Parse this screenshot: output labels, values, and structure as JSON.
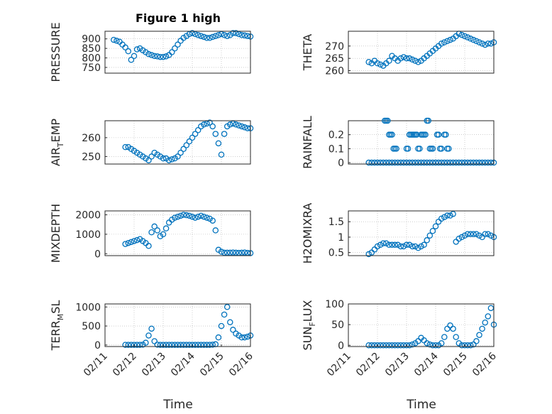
{
  "figure": {
    "title": "Figure 1 high",
    "xlabel": "Time",
    "date_ticks": [
      "02/11",
      "02/12",
      "02/13",
      "02/14",
      "02/15",
      "02/16"
    ]
  },
  "colors": {
    "marker": "#0072BD",
    "axis": "#262626",
    "grid": "#b0b0b0"
  },
  "chart_data": [
    {
      "id": "pressure",
      "type": "scatter",
      "ylabel_main": "PRESSURE",
      "ylabel_sub": "",
      "ylabel_tail": "",
      "xlim": [
        0,
        5
      ],
      "ylim": [
        720,
        940
      ],
      "yticks": [
        750,
        800,
        850,
        900
      ],
      "ytick_labels": [
        "750",
        "800",
        "850",
        "900"
      ],
      "x": [
        0.3,
        0.4,
        0.5,
        0.6,
        0.7,
        0.8,
        0.9,
        1.0,
        1.1,
        1.2,
        1.3,
        1.4,
        1.5,
        1.6,
        1.7,
        1.8,
        1.9,
        2.0,
        2.1,
        2.2,
        2.3,
        2.4,
        2.5,
        2.6,
        2.7,
        2.8,
        2.9,
        3.0,
        3.1,
        3.2,
        3.3,
        3.4,
        3.5,
        3.6,
        3.7,
        3.8,
        3.9,
        4.0,
        4.1,
        4.2,
        4.3,
        4.4,
        4.5,
        4.6,
        4.7,
        4.8,
        4.9,
        5.0
      ],
      "y": [
        895,
        890,
        885,
        870,
        855,
        835,
        790,
        810,
        845,
        850,
        840,
        830,
        820,
        815,
        810,
        808,
        805,
        805,
        808,
        815,
        830,
        850,
        870,
        890,
        905,
        915,
        925,
        930,
        925,
        920,
        915,
        910,
        905,
        905,
        910,
        915,
        920,
        925,
        920,
        915,
        920,
        930,
        930,
        925,
        920,
        918,
        915,
        912
      ]
    },
    {
      "id": "theta",
      "type": "scatter",
      "ylabel_main": "THETA",
      "ylabel_sub": "",
      "ylabel_tail": "",
      "xlim": [
        0,
        5
      ],
      "ylim": [
        259,
        276
      ],
      "yticks": [
        260,
        265,
        270
      ],
      "ytick_labels": [
        "260",
        "265",
        "270"
      ],
      "x": [
        0.7,
        0.8,
        0.9,
        1.0,
        1.1,
        1.2,
        1.3,
        1.4,
        1.5,
        1.6,
        1.7,
        1.8,
        1.9,
        2.0,
        2.1,
        2.2,
        2.3,
        2.4,
        2.5,
        2.6,
        2.7,
        2.8,
        2.9,
        3.0,
        3.1,
        3.2,
        3.3,
        3.4,
        3.5,
        3.6,
        3.7,
        3.8,
        3.9,
        4.0,
        4.1,
        4.2,
        4.3,
        4.4,
        4.5,
        4.6,
        4.7,
        4.8,
        4.9,
        5.0
      ],
      "y": [
        263.5,
        263,
        264,
        263,
        262.5,
        262,
        263,
        264,
        266,
        265,
        264,
        265,
        265.5,
        265,
        265,
        264.5,
        264,
        263.5,
        264,
        265,
        266,
        267,
        268,
        269,
        270,
        271,
        271.5,
        272,
        272.5,
        273,
        274,
        275,
        274.5,
        274,
        273.5,
        273,
        272.5,
        272,
        271.5,
        271,
        270.5,
        271,
        271,
        271.5
      ]
    },
    {
      "id": "air_temp",
      "type": "scatter",
      "ylabel_main": "AIR",
      "ylabel_sub": "T",
      "ylabel_tail": "EMP",
      "xlim": [
        0,
        5
      ],
      "ylim": [
        246,
        269
      ],
      "yticks": [
        250,
        260
      ],
      "ytick_labels": [
        "250",
        "260"
      ],
      "x": [
        0.7,
        0.8,
        0.9,
        1.0,
        1.1,
        1.2,
        1.3,
        1.4,
        1.5,
        1.6,
        1.7,
        1.8,
        1.9,
        2.0,
        2.1,
        2.2,
        2.3,
        2.4,
        2.5,
        2.6,
        2.7,
        2.8,
        2.9,
        3.0,
        3.1,
        3.2,
        3.3,
        3.4,
        3.5,
        3.6,
        3.7,
        3.8,
        3.9,
        4.0,
        4.1,
        4.2,
        4.3,
        4.4,
        4.5,
        4.6,
        4.7,
        4.8,
        4.9,
        5.0
      ],
      "y": [
        255,
        255,
        254,
        253,
        252,
        251,
        250,
        249,
        248,
        250,
        252,
        251,
        250,
        249,
        249,
        248,
        248.5,
        249,
        250,
        252,
        254,
        256,
        258,
        260,
        262,
        264,
        266,
        267,
        267.5,
        268,
        266,
        262,
        257,
        251,
        262,
        266,
        267,
        267.5,
        267,
        266.5,
        266,
        265.5,
        265,
        265
      ]
    },
    {
      "id": "rainfall",
      "type": "scatter",
      "ylabel_main": "RAINFALL",
      "ylabel_sub": "",
      "ylabel_tail": "",
      "xlim": [
        0,
        5
      ],
      "ylim": [
        -0.01,
        0.3
      ],
      "yticks": [
        0,
        0.1,
        0.2
      ],
      "ytick_labels": [
        "0",
        "0.1",
        "0.2"
      ],
      "x": [
        0.7,
        0.8,
        0.9,
        1.0,
        1.1,
        1.2,
        1.3,
        1.4,
        1.5,
        1.6,
        1.7,
        1.8,
        1.9,
        2.0,
        2.1,
        2.2,
        2.3,
        2.4,
        2.5,
        2.6,
        2.7,
        2.8,
        2.9,
        3.0,
        3.1,
        3.2,
        3.3,
        3.4,
        3.5,
        3.6,
        3.7,
        3.8,
        3.9,
        4.0,
        4.1,
        4.2,
        4.3,
        4.4,
        4.5,
        4.6,
        4.7,
        4.8,
        4.9,
        5.0
      ],
      "y": [
        0,
        0,
        0,
        0,
        0,
        0,
        0,
        0,
        0,
        0,
        0,
        0,
        0,
        0,
        0,
        0,
        0,
        0,
        0,
        0,
        0,
        0,
        0,
        0,
        0,
        0,
        0,
        0,
        0,
        0,
        0,
        0,
        0,
        0,
        0,
        0,
        0,
        0,
        0,
        0,
        0,
        0,
        0,
        0
      ]
    },
    {
      "id": "mixdepth",
      "type": "scatter",
      "ylabel_main": "MIXDEPTH",
      "ylabel_sub": "",
      "ylabel_tail": "",
      "xlim": [
        0,
        5
      ],
      "ylim": [
        -100,
        2200
      ],
      "yticks": [
        0,
        1000,
        2000
      ],
      "ytick_labels": [
        "0",
        "1000",
        "2000"
      ],
      "x": [
        0.7,
        0.8,
        0.9,
        1.0,
        1.1,
        1.2,
        1.3,
        1.4,
        1.5,
        1.6,
        1.7,
        1.8,
        1.9,
        2.0,
        2.1,
        2.2,
        2.3,
        2.4,
        2.5,
        2.6,
        2.7,
        2.8,
        2.9,
        3.0,
        3.1,
        3.2,
        3.3,
        3.4,
        3.5,
        3.6,
        3.7,
        3.8,
        3.9,
        4.0,
        4.1,
        4.2,
        4.3,
        4.4,
        4.5,
        4.6,
        4.7,
        4.8,
        4.9,
        5.0
      ],
      "y": [
        500,
        550,
        600,
        650,
        700,
        750,
        650,
        550,
        400,
        1100,
        1400,
        1200,
        900,
        1000,
        1300,
        1600,
        1750,
        1850,
        1900,
        1950,
        2000,
        1980,
        1950,
        1900,
        1850,
        1900,
        1950,
        1900,
        1850,
        1800,
        1700,
        1200,
        200,
        100,
        50,
        50,
        50,
        60,
        50,
        40,
        50,
        60,
        40,
        30
      ]
    },
    {
      "id": "h2omixra",
      "type": "scatter",
      "ylabel_main": "H2OMIXRA",
      "ylabel_sub": "",
      "ylabel_tail": "",
      "xlim": [
        0,
        5
      ],
      "ylim": [
        0.4,
        1.85
      ],
      "yticks": [
        0.5,
        1,
        1.5
      ],
      "ytick_labels": [
        "0.5",
        "1",
        "1.5"
      ],
      "x": [
        0.7,
        0.8,
        0.9,
        1.0,
        1.1,
        1.2,
        1.3,
        1.4,
        1.5,
        1.6,
        1.7,
        1.8,
        1.9,
        2.0,
        2.1,
        2.2,
        2.3,
        2.4,
        2.5,
        2.6,
        2.7,
        2.8,
        2.9,
        3.0,
        3.1,
        3.2,
        3.3,
        3.4,
        3.5,
        3.6,
        3.7,
        3.8,
        3.9,
        4.0,
        4.1,
        4.2,
        4.3,
        4.4,
        4.5,
        4.6,
        4.7,
        4.8,
        4.9,
        5.0
      ],
      "y": [
        0.45,
        0.5,
        0.6,
        0.7,
        0.75,
        0.8,
        0.8,
        0.75,
        0.75,
        0.75,
        0.75,
        0.7,
        0.7,
        0.75,
        0.75,
        0.7,
        0.7,
        0.65,
        0.7,
        0.75,
        0.9,
        1.05,
        1.2,
        1.35,
        1.5,
        1.6,
        1.65,
        1.7,
        1.7,
        1.75,
        0.85,
        0.95,
        1.0,
        1.05,
        1.1,
        1.1,
        1.1,
        1.1,
        1.05,
        1.0,
        1.1,
        1.1,
        1.05,
        1.0
      ]
    },
    {
      "id": "terr_msl",
      "type": "scatter",
      "ylabel_main": "TERR",
      "ylabel_sub": "M",
      "ylabel_tail": "SL",
      "xlim": [
        0,
        5
      ],
      "ylim": [
        -40,
        1080
      ],
      "yticks": [
        0,
        500,
        1000
      ],
      "ytick_labels": [
        "0",
        "500",
        "1000"
      ],
      "x": [
        0.7,
        0.8,
        0.9,
        1.0,
        1.1,
        1.2,
        1.3,
        1.4,
        1.5,
        1.6,
        1.7,
        1.8,
        1.9,
        2.0,
        2.1,
        2.2,
        2.3,
        2.4,
        2.5,
        2.6,
        2.7,
        2.8,
        2.9,
        3.0,
        3.1,
        3.2,
        3.3,
        3.4,
        3.5,
        3.6,
        3.7,
        3.8,
        3.9,
        4.0,
        4.1,
        4.2,
        4.3,
        4.4,
        4.5,
        4.6,
        4.7,
        4.8,
        4.9,
        5.0
      ],
      "y": [
        5,
        5,
        5,
        5,
        5,
        5,
        10,
        60,
        250,
        430,
        100,
        10,
        5,
        5,
        5,
        5,
        5,
        5,
        5,
        5,
        5,
        5,
        5,
        5,
        5,
        5,
        5,
        5,
        5,
        5,
        10,
        20,
        200,
        500,
        800,
        1000,
        600,
        400,
        300,
        250,
        200,
        200,
        220,
        250
      ]
    },
    {
      "id": "sun_flux",
      "type": "scatter",
      "ylabel_main": "SUN",
      "ylabel_sub": "F",
      "ylabel_tail": "LUX",
      "xlim": [
        0,
        5
      ],
      "ylim": [
        -3,
        100
      ],
      "yticks": [
        0,
        50,
        100
      ],
      "ytick_labels": [
        "0",
        "50",
        "100"
      ],
      "x": [
        0.7,
        0.8,
        0.9,
        1.0,
        1.1,
        1.2,
        1.3,
        1.4,
        1.5,
        1.6,
        1.7,
        1.8,
        1.9,
        2.0,
        2.1,
        2.2,
        2.3,
        2.4,
        2.5,
        2.6,
        2.7,
        2.8,
        2.9,
        3.0,
        3.1,
        3.2,
        3.3,
        3.4,
        3.5,
        3.6,
        3.7,
        3.8,
        3.9,
        4.0,
        4.1,
        4.2,
        4.3,
        4.4,
        4.5,
        4.6,
        4.7,
        4.8,
        4.9,
        5.0
      ],
      "y": [
        0,
        0,
        0,
        0,
        0,
        0,
        0,
        0,
        0,
        0,
        0,
        0,
        0,
        0,
        0,
        2,
        5,
        10,
        18,
        12,
        5,
        2,
        0,
        0,
        0,
        5,
        20,
        40,
        48,
        40,
        20,
        5,
        0,
        0,
        0,
        0,
        2,
        10,
        25,
        40,
        55,
        70,
        90,
        50
      ]
    }
  ]
}
